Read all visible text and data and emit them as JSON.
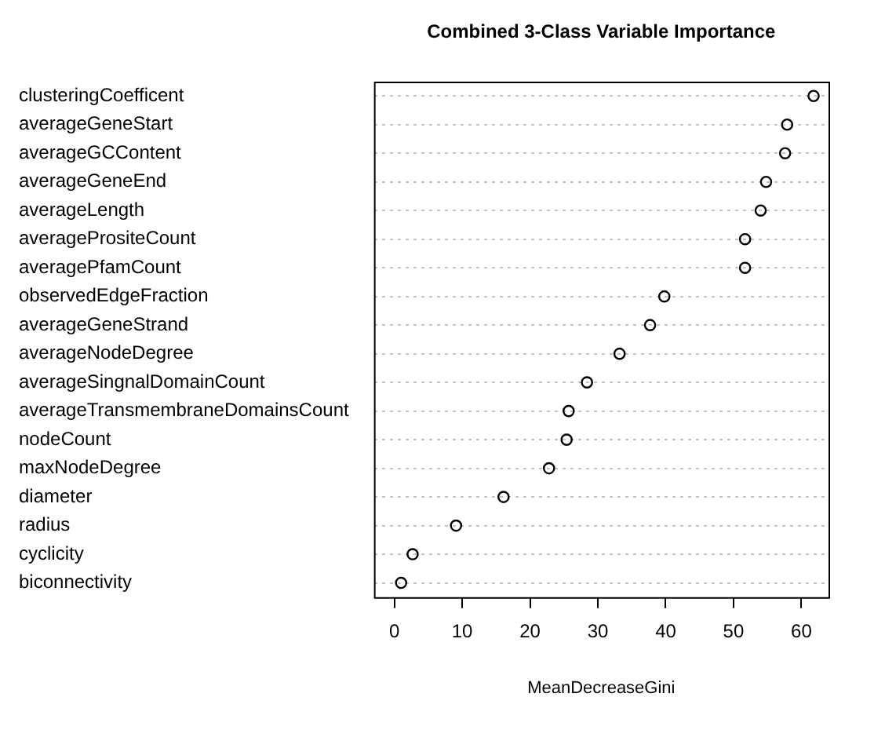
{
  "chart_data": {
    "type": "scatter",
    "title": "Combined 3-Class Variable Importance",
    "xlabel": "MeanDecreaseGini",
    "categories": [
      "clusteringCoefficent",
      "averageGeneStart",
      "averageGCContent",
      "averageGeneEnd",
      "averageLength",
      "averagePrositeCount",
      "averagePfamCount",
      "observedEdgeFraction",
      "averageGeneStrand",
      "averageNodeDegree",
      "averageSingnalDomainCount",
      "averageTransmembraneDomainsCount",
      "nodeCount",
      "maxNodeDegree",
      "diameter",
      "radius",
      "cyclicity",
      "biconnectivity"
    ],
    "values": [
      61.8,
      57.9,
      57.6,
      54.8,
      54.0,
      51.7,
      51.7,
      39.8,
      37.7,
      33.2,
      28.4,
      25.7,
      25.4,
      22.8,
      16.1,
      9.1,
      2.7,
      1.0
    ],
    "color": "#000000",
    "marker": "circle",
    "orientation": "horizontal",
    "grid": "y",
    "legend": false,
    "xlim": [
      -3,
      64
    ],
    "xticks": [
      0,
      10,
      20,
      30,
      40,
      50,
      60
    ]
  }
}
